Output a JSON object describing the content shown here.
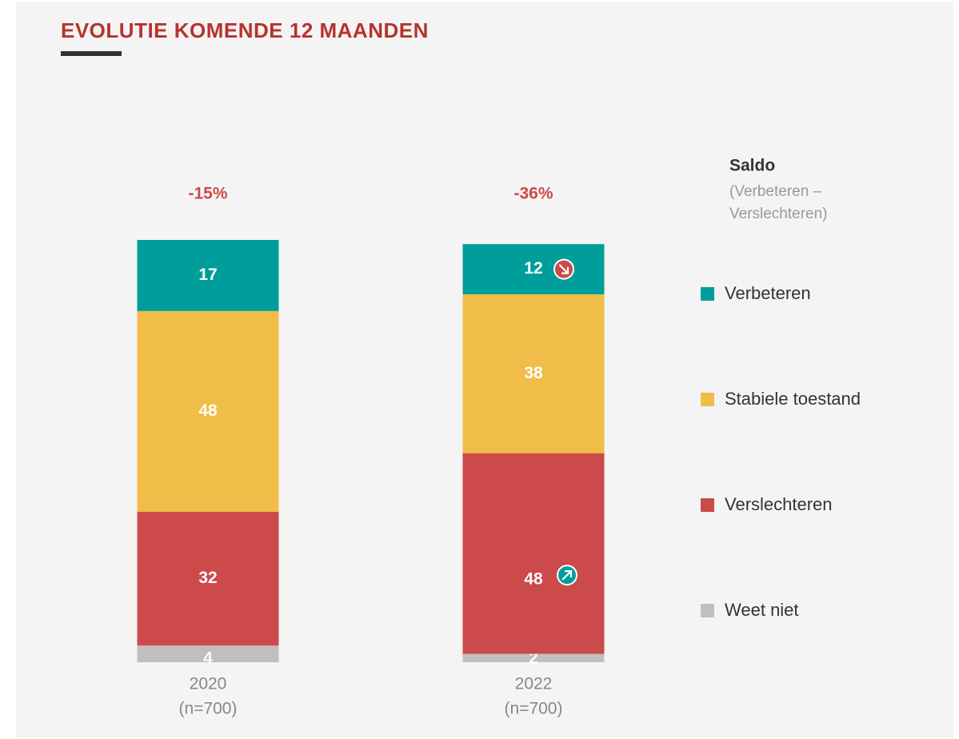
{
  "chart_data": {
    "type": "stacked_bar",
    "title": "EVOLUTIE KOMENDE 12 MAANDEN",
    "categories": [
      "2020",
      "2022"
    ],
    "category_notes": [
      "(n=700)",
      "(n=700)"
    ],
    "series": [
      {
        "name": "Verbeteren",
        "color": "#009e9b",
        "values": [
          17,
          12
        ],
        "trend": [
          null,
          "down"
        ]
      },
      {
        "name": "Stabiele toestand",
        "color": "#f0bd48",
        "values": [
          48,
          38
        ]
      },
      {
        "name": "Verslechteren",
        "color": "#cc4a4a",
        "values": [
          32,
          48
        ],
        "trend": [
          null,
          "up"
        ]
      },
      {
        "name": "Weet niet",
        "color": "#bfbfbf",
        "values": [
          4,
          2
        ]
      }
    ],
    "saldo": {
      "title": "Saldo",
      "subtitle": [
        "(Verbeteren –",
        "Verslechteren)"
      ],
      "values": [
        -15,
        -36
      ],
      "value_labels": [
        "-15%",
        "-36%"
      ],
      "color": "#cc4a4a"
    }
  }
}
